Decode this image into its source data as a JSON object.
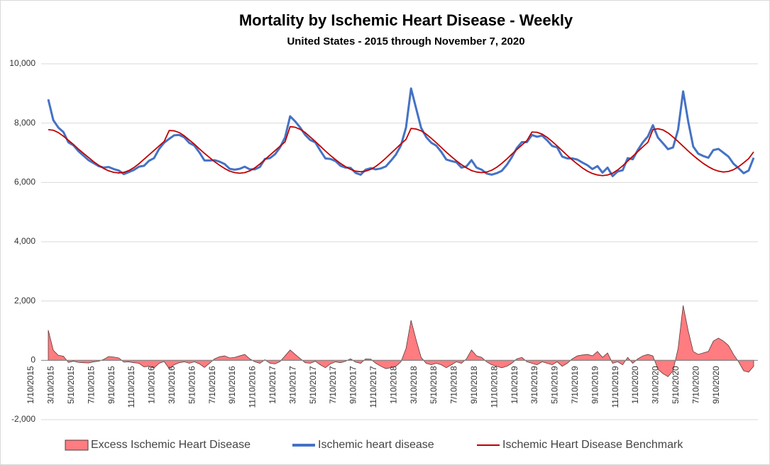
{
  "chart_data": {
    "type": "line",
    "title": "Mortality by Ischemic Heart Disease - Weekly",
    "subtitle": "United States - 2015 through November 7, 2020",
    "categories": [
      "1/10/2015",
      null,
      null,
      null,
      "3/10/2015",
      null,
      null,
      null,
      "5/10/2015",
      null,
      null,
      null,
      "7/10/2015",
      null,
      null,
      null,
      "9/10/2015",
      null,
      null,
      null,
      "11/10/2015",
      null,
      null,
      null,
      "1/10/2016",
      null,
      null,
      null,
      "3/10/2016",
      null,
      null,
      null,
      "5/10/2016",
      null,
      null,
      null,
      "7/10/2016",
      null,
      null,
      null,
      "9/10/2016",
      null,
      null,
      null,
      "11/10/2016",
      null,
      null,
      null,
      "1/10/2017",
      null,
      null,
      null,
      "3/10/2017",
      null,
      null,
      null,
      "5/10/2017",
      null,
      null,
      null,
      "7/10/2017",
      null,
      null,
      null,
      "9/10/2017",
      null,
      null,
      null,
      "11/10/2017",
      null,
      null,
      null,
      "1/10/2018",
      null,
      null,
      null,
      "3/10/2018",
      null,
      null,
      null,
      "5/10/2018",
      null,
      null,
      null,
      "7/10/2018",
      null,
      null,
      null,
      "9/10/2018",
      null,
      null,
      null,
      "11/10/2018",
      null,
      null,
      null,
      "1/10/2019",
      null,
      null,
      null,
      "3/10/2019",
      null,
      null,
      null,
      "5/10/2019",
      null,
      null,
      null,
      "7/10/2019",
      null,
      null,
      null,
      "9/10/2019",
      null,
      null,
      null,
      "11/10/2019",
      null,
      null,
      null,
      "1/10/2020",
      null,
      null,
      null,
      "3/10/2020",
      null,
      null,
      null,
      "5/10/2020",
      null,
      null,
      null,
      "7/10/2020",
      null,
      null,
      null,
      "9/10/2020",
      null,
      null,
      null,
      null
    ],
    "series": [
      {
        "name": "Excess Ischemic Heart Disease",
        "type": "area",
        "color": "#ff7c80",
        "values": [
          1020,
          340,
          170,
          140,
          -70,
          -30,
          -70,
          -80,
          -90,
          -50,
          -30,
          30,
          130,
          110,
          80,
          -60,
          -50,
          -80,
          -100,
          -220,
          -200,
          -260,
          -100,
          -40,
          -280,
          -150,
          -80,
          -50,
          -100,
          -50,
          -120,
          -240,
          -100,
          50,
          120,
          150,
          80,
          100,
          150,
          200,
          50,
          -50,
          -100,
          20,
          -100,
          -120,
          -40,
          150,
          350,
          200,
          60,
          -80,
          -100,
          -30,
          -150,
          -250,
          -120,
          -50,
          -80,
          -30,
          50,
          -60,
          -100,
          50,
          40,
          -100,
          -200,
          -280,
          -250,
          -200,
          -50,
          400,
          1350,
          700,
          100,
          -100,
          -150,
          -100,
          -150,
          -250,
          -150,
          -50,
          -100,
          50,
          350,
          150,
          100,
          -50,
          -150,
          -200,
          -250,
          -200,
          -100,
          50,
          100,
          -50,
          -100,
          -150,
          -50,
          -100,
          -150,
          -50,
          -200,
          -100,
          50,
          150,
          180,
          200,
          150,
          300,
          100,
          250,
          -100,
          -50,
          -150,
          100,
          -100,
          50,
          150,
          200,
          150,
          -300,
          -450,
          -550,
          -350,
          400,
          1850,
          1000,
          300,
          200,
          250,
          300,
          650,
          750,
          650,
          500,
          200,
          -50,
          -350,
          -400,
          -200
        ]
      },
      {
        "name": "Ischemic heart disease",
        "type": "line",
        "color": "#4472c4",
        "values": [
          8800,
          8100,
          7850,
          7700,
          7350,
          7250,
          7050,
          6900,
          6750,
          6650,
          6550,
          6500,
          6520,
          6450,
          6400,
          6280,
          6350,
          6420,
          6530,
          6560,
          6730,
          6820,
          7130,
          7340,
          7470,
          7590,
          7600,
          7520,
          7330,
          7240,
          7010,
          6740,
          6740,
          6750,
          6700,
          6620,
          6460,
          6430,
          6460,
          6530,
          6440,
          6440,
          6520,
          6790,
          6820,
          6950,
          7180,
          7520,
          8230,
          8060,
          7850,
          7600,
          7430,
          7350,
          7070,
          6810,
          6790,
          6720,
          6560,
          6500,
          6490,
          6320,
          6260,
          6430,
          6480,
          6440,
          6470,
          6540,
          6730,
          6940,
          7250,
          7850,
          9170,
          8500,
          7840,
          7530,
          7340,
          7240,
          7030,
          6770,
          6720,
          6680,
          6500,
          6540,
          6750,
          6500,
          6430,
          6300,
          6260,
          6310,
          6390,
          6590,
          6850,
          7160,
          7360,
          7360,
          7600,
          7540,
          7580,
          7420,
          7230,
          7180,
          6870,
          6810,
          6810,
          6770,
          6670,
          6580,
          6450,
          6550,
          6330,
          6500,
          6210,
          6370,
          6410,
          6820,
          6780,
          7090,
          7350,
          7550,
          7930,
          7510,
          7320,
          7120,
          7180,
          7780,
          9070,
          8060,
          7210,
          6970,
          6890,
          6830,
          7090,
          7130,
          7000,
          6870,
          6630,
          6480,
          6310,
          6400,
          6830
        ]
      },
      {
        "name": "Ischemic Heart Disease Benchmark",
        "type": "line",
        "color": "#c00000",
        "values": [
          7780,
          7760,
          7680,
          7560,
          7420,
          7280,
          7120,
          6980,
          6840,
          6700,
          6580,
          6470,
          6390,
          6340,
          6320,
          6340,
          6400,
          6500,
          6630,
          6780,
          6930,
          7080,
          7230,
          7380,
          7750,
          7740,
          7680,
          7570,
          7430,
          7290,
          7130,
          6980,
          6840,
          6700,
          6580,
          6470,
          6380,
          6330,
          6310,
          6330,
          6390,
          6490,
          6620,
          6770,
          6920,
          7070,
          7220,
          7370,
          7880,
          7860,
          7790,
          7680,
          7530,
          7380,
          7220,
          7060,
          6910,
          6770,
          6640,
          6530,
          6440,
          6380,
          6360,
          6380,
          6440,
          6540,
          6670,
          6820,
          6980,
          7140,
          7300,
          7450,
          7820,
          7800,
          7740,
          7630,
          7490,
          7340,
          7180,
          7020,
          6870,
          6730,
          6600,
          6490,
          6400,
          6350,
          6330,
          6350,
          6410,
          6510,
          6640,
          6790,
          6950,
          7110,
          7260,
          7410,
          7700,
          7690,
          7630,
          7520,
          7380,
          7230,
          7070,
          6910,
          6760,
          6620,
          6490,
          6380,
          6300,
          6250,
          6230,
          6250,
          6310,
          6420,
          6560,
          6720,
          6880,
          7040,
          7200,
          7350,
          7780,
          7810,
          7770,
          7670,
          7530,
          7380,
          7220,
          7060,
          6910,
          6770,
          6640,
          6530,
          6440,
          6380,
          6350,
          6370,
          6430,
          6530,
          6660,
          6800,
          7030
        ]
      }
    ],
    "ylim": [
      -2000,
      10000
    ],
    "yticks": [
      {
        "value": -2000,
        "label": "-2,000"
      },
      0,
      {
        "value": 2000,
        "label": "2,000"
      },
      {
        "value": 4000,
        "label": "4,000"
      },
      {
        "value": 6000,
        "label": "6,000"
      },
      {
        "value": 8000,
        "label": "8,000"
      },
      {
        "value": 10000,
        "label": "10,000"
      }
    ],
    "grid": true,
    "legend": "bottom"
  }
}
